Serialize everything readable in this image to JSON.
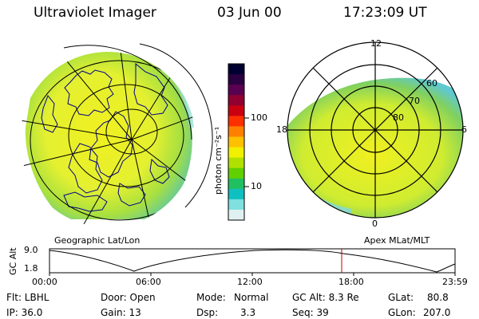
{
  "header": {
    "title": "Ultraviolet Imager",
    "date": "03 Jun 00",
    "time": "17:23:09 UT"
  },
  "left_panel": {
    "caption": "Geographic Lat/Lon"
  },
  "right_panel": {
    "caption": "Apex MLat/MLT",
    "mlt_labels": {
      "top": "12",
      "left": "18",
      "right": "6",
      "bottom": "0"
    },
    "lat_labels": [
      "60",
      "70",
      "80"
    ]
  },
  "colorbar": {
    "unit_label": "photon cm⁻²s⁻¹",
    "tick_100": "100",
    "tick_10": "10",
    "colors_top_to_bottom": [
      "#000030",
      "#2a0040",
      "#5a0050",
      "#900030",
      "#c80010",
      "#ff3000",
      "#ff8000",
      "#ffc000",
      "#f0f000",
      "#b0e000",
      "#60d000",
      "#20c060",
      "#10c0c0",
      "#80e0e0",
      "#e0f0f0"
    ]
  },
  "altitude_plot": {
    "ylabel": "GC Alt",
    "ytick_top": "9.0",
    "ytick_bottom": "1.8",
    "xticks": [
      "00:00",
      "06:00",
      "12:00",
      "18:00",
      "23:59"
    ],
    "current_time_marker_color": "#c00000"
  },
  "info": {
    "flt": "Flt: LBHL",
    "ip": "IP: 36.0",
    "door": "Door: Open",
    "gain": "Gain: 13",
    "mode_label": "Mode:",
    "mode_value": "Normal",
    "dsp_label": "Dsp:",
    "dsp_value": "3.3",
    "gcalt": "GC Alt: 8.3 Re",
    "seq": "Seq: 39",
    "glat_label": "GLat:",
    "glat_value": "80.8",
    "glon_label": "GLon:",
    "glon_value": "207.0"
  }
}
